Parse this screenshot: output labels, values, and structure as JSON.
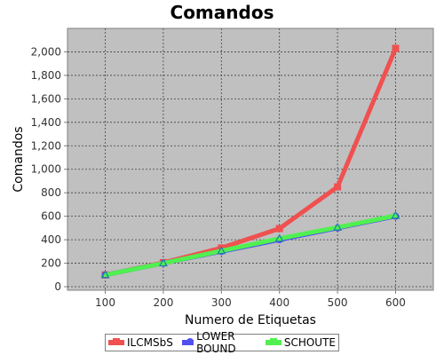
{
  "chart_data": {
    "type": "line",
    "title": "Comandos",
    "xlabel": "Numero de Etiquetas",
    "ylabel": "Comandos",
    "x": [
      100,
      200,
      300,
      400,
      500,
      600
    ],
    "xlim": [
      35,
      665
    ],
    "ylim": [
      -30,
      2200
    ],
    "yticks": [
      0,
      200,
      400,
      600,
      800,
      1000,
      1200,
      1400,
      1600,
      1800,
      2000
    ],
    "ytick_labels": [
      "0",
      "200",
      "400",
      "600",
      "800",
      "1,000",
      "1,200",
      "1,400",
      "1,600",
      "1,800",
      "2,000"
    ],
    "xtick_labels": [
      "100",
      "200",
      "300",
      "400",
      "500",
      "600"
    ],
    "grid": true,
    "legend_position": "bottom",
    "background": "#c0c0c0",
    "series": [
      {
        "name": "ILCMSbS",
        "color": "#f05050",
        "values": [
          100,
          205,
          330,
          495,
          850,
          2030
        ]
      },
      {
        "name": "LOWER BOUND",
        "color": "#5050f0",
        "values": [
          100,
          200,
          300,
          400,
          500,
          600
        ]
      },
      {
        "name": "SCHOUTE",
        "color": "#50f050",
        "values": [
          100,
          200,
          305,
          410,
          505,
          605
        ]
      }
    ]
  }
}
